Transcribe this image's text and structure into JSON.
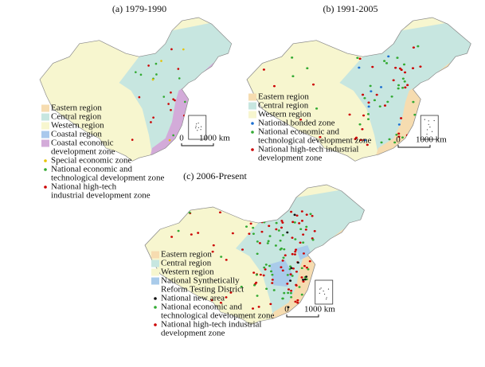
{
  "panels": [
    {
      "title": "(a) 1979-1990",
      "legend": [
        {
          "label": [
            "Eastern region"
          ]
        },
        {
          "label": [
            "Central region"
          ]
        },
        {
          "label": [
            "Western region"
          ]
        },
        {
          "label": [
            "Coastal region"
          ]
        },
        {
          "label": [
            "Coastal economic",
            "development zone"
          ]
        },
        {
          "label": [
            "Special economic zone"
          ]
        },
        {
          "label": [
            "National economic and",
            "technological development zone"
          ]
        },
        {
          "label": [
            "National high-tech",
            "industrial development zone"
          ]
        }
      ],
      "scale": [
        "0",
        "1000 km"
      ]
    },
    {
      "title": "(b) 1991-2005",
      "legend": [
        {
          "label": [
            "Eastern region"
          ]
        },
        {
          "label": [
            "Central region"
          ]
        },
        {
          "label": [
            "Western region"
          ]
        },
        {
          "label": [
            "National bonded zone"
          ]
        },
        {
          "label": [
            "National economic and",
            "technological development zone"
          ]
        },
        {
          "label": [
            "National high-tech industrial",
            "development zone"
          ]
        }
      ],
      "scale": [
        "0",
        "1000 km"
      ]
    },
    {
      "title": "(c) 2006-Present",
      "legend": [
        {
          "label": [
            "Eastern region"
          ]
        },
        {
          "label": [
            "Central region"
          ]
        },
        {
          "label": [
            "Western region"
          ]
        },
        {
          "label": [
            "National Synthetically",
            "Reform Testing District"
          ]
        },
        {
          "label": [
            "National new area"
          ]
        },
        {
          "label": [
            "National economic and",
            "technological development zone"
          ]
        },
        {
          "label": [
            "National high-tech industrial",
            "development zone"
          ]
        }
      ],
      "scale": [
        "0",
        "1000 km"
      ]
    }
  ]
}
